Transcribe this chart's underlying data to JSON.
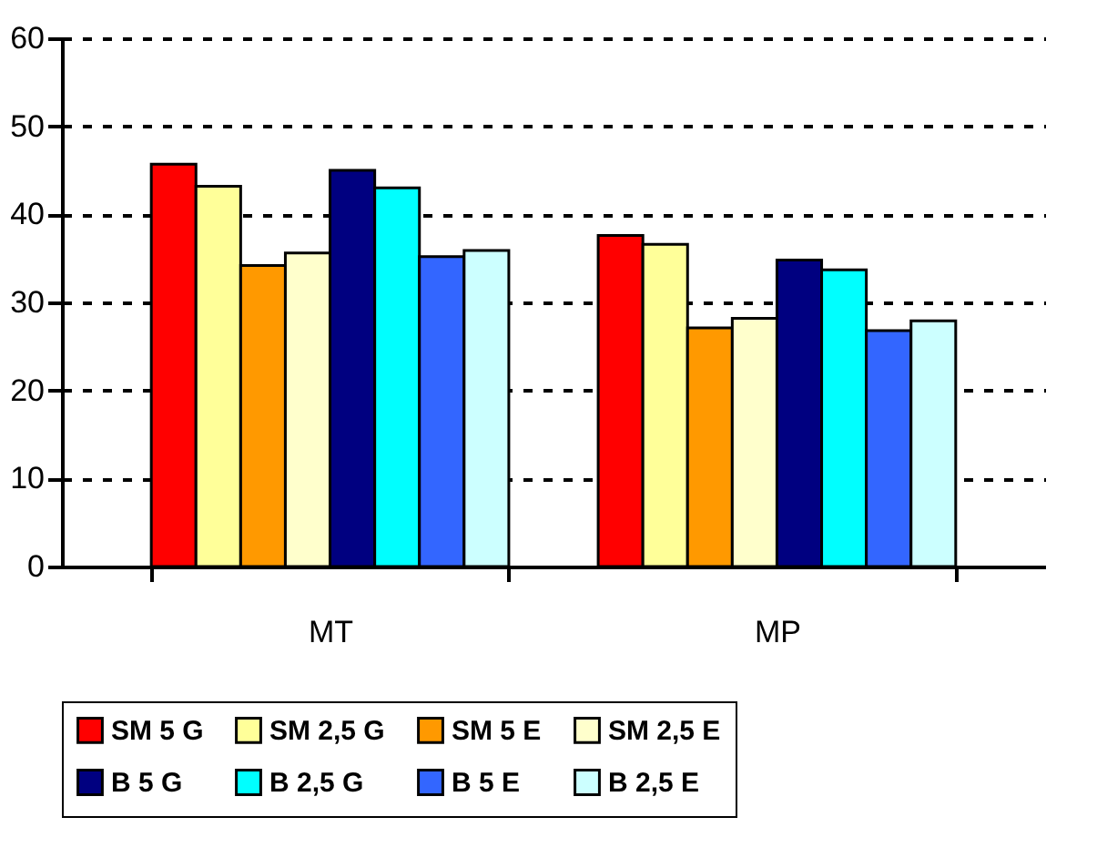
{
  "chart_data": {
    "type": "bar",
    "categories": [
      "MT",
      "MP"
    ],
    "series": [
      {
        "name": "SM 5 G",
        "color": "#ff0000",
        "values": [
          45.7,
          37.6
        ]
      },
      {
        "name": "SM 2,5 G",
        "color": "#ffff99",
        "values": [
          43.2,
          36.6
        ]
      },
      {
        "name": "SM 5 E",
        "color": "#ff9900",
        "values": [
          34.2,
          27.1
        ]
      },
      {
        "name": "SM 2,5 E",
        "color": "#ffffcc",
        "values": [
          35.6,
          28.2
        ]
      },
      {
        "name": "B 5 G",
        "color": "#000080",
        "values": [
          45.0,
          34.8
        ]
      },
      {
        "name": "B 2,5 G",
        "color": "#00ffff",
        "values": [
          43.0,
          33.7
        ]
      },
      {
        "name": "B 5 E",
        "color": "#3366ff",
        "values": [
          35.2,
          26.8
        ]
      },
      {
        "name": "B 2,5 E",
        "color": "#ccffff",
        "values": [
          35.9,
          27.9
        ]
      }
    ],
    "ylim": [
      0,
      60
    ],
    "yticks": [
      0,
      10,
      20,
      30,
      40,
      50,
      60
    ],
    "grid": "y",
    "line_style": "dashed",
    "legend": "bottom"
  }
}
